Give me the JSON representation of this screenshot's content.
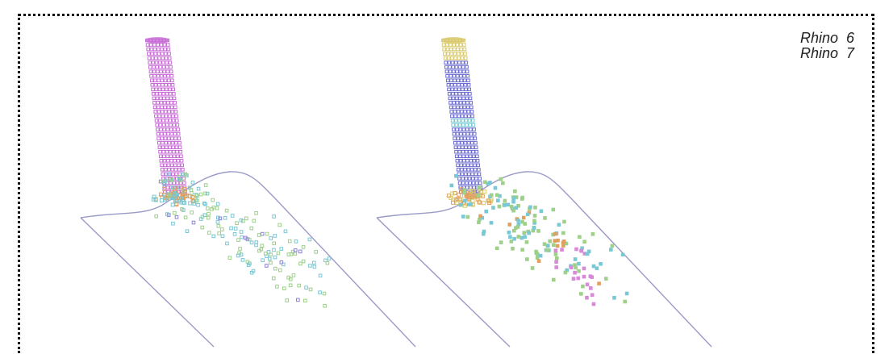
{
  "legend": {
    "line1": "Rhino  6",
    "line2": "Rhino  7"
  },
  "colors": {
    "frame": "#111111",
    "surface_line": "#9a9ac8",
    "pipe_left": "#c76ad6",
    "pipe_right_body": "#6c6cd0",
    "pipe_right_top": "#d8c86a",
    "pipe_right_band": "#74c8d0",
    "splash_orange": "#e0a060",
    "particle_green": "#9ed08a",
    "particle_cyan": "#78c8d6",
    "particle_purple": "#8c82d6",
    "particle_dark": "#333333",
    "particle_pink": "#d88ad8"
  },
  "panels": [
    {
      "name": "rhino-6-render",
      "pipe_style": "single-color"
    },
    {
      "name": "rhino-7-render",
      "pipe_style": "segmented"
    }
  ]
}
